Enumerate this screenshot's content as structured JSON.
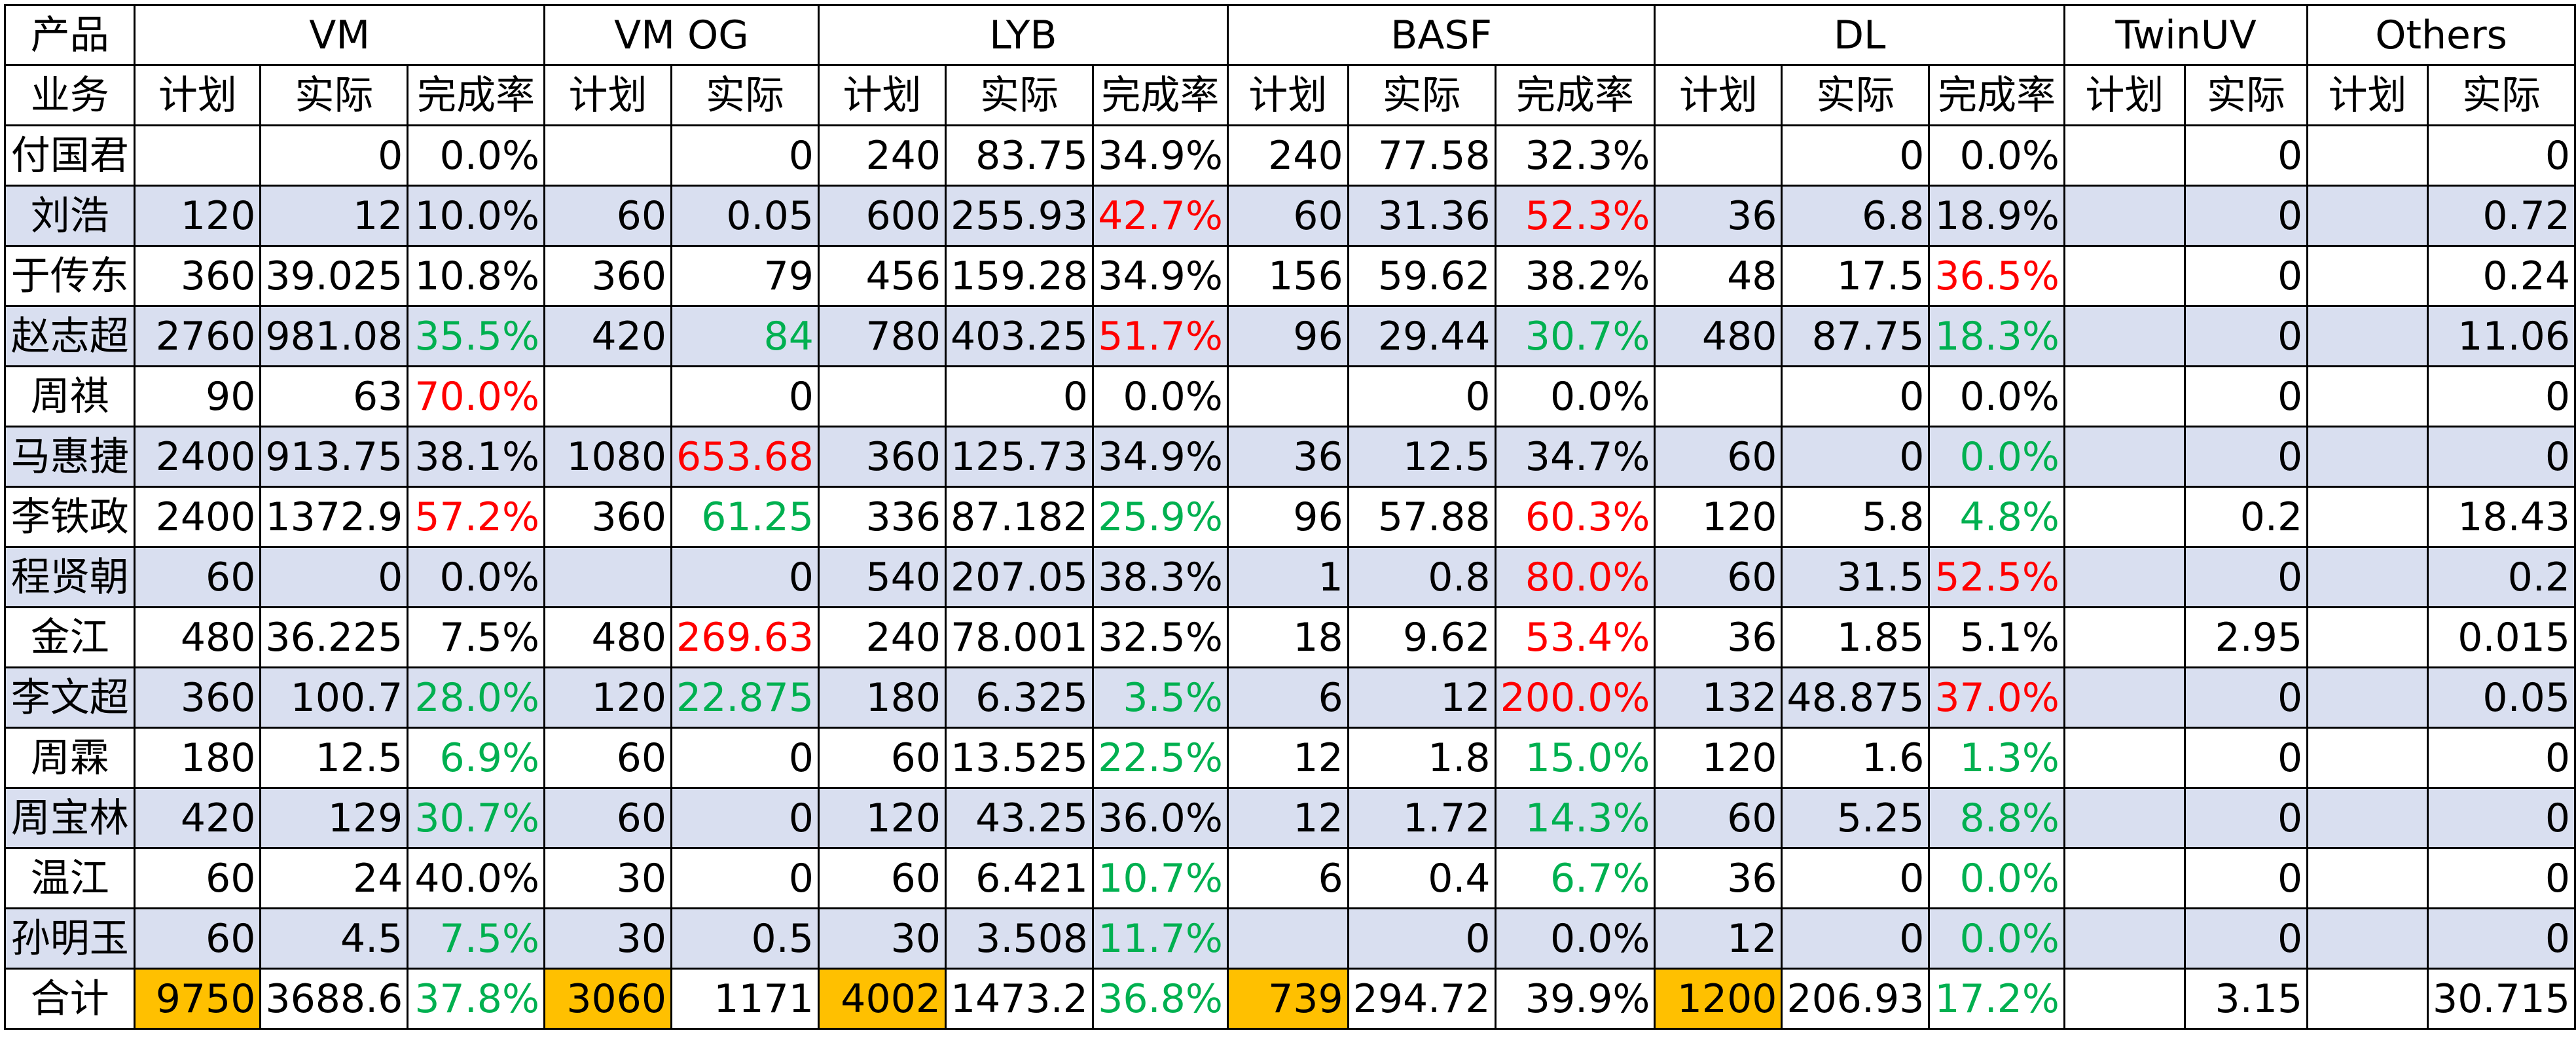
{
  "header": {
    "corner_top": "产品",
    "corner_bottom": "业务",
    "groups": [
      {
        "name": "VM",
        "span": 3
      },
      {
        "name": "VM OG",
        "span": 2
      },
      {
        "name": "LYB",
        "span": 3
      },
      {
        "name": "BASF",
        "span": 3
      },
      {
        "name": "DL",
        "span": 3
      },
      {
        "name": "TwinUV",
        "span": 2
      },
      {
        "name": "Others",
        "span": 2
      }
    ],
    "subheaders": [
      "计划",
      "实际",
      "完成率",
      "计划",
      "实际",
      "计划",
      "实际",
      "完成率",
      "计划",
      "实际",
      "完成率",
      "计划",
      "实际",
      "完成率",
      "计划",
      "实际",
      "计划",
      "实际"
    ]
  },
  "colors": {
    "red": "#ff0000",
    "green": "#00b050",
    "row_shade": "#d9dff0",
    "total_highlight": "#ffc000"
  },
  "rows": [
    {
      "name": "付国君",
      "shade": false,
      "cells": [
        {
          "v": ""
        },
        {
          "v": "0"
        },
        {
          "v": "0.0%"
        },
        {
          "v": ""
        },
        {
          "v": "0"
        },
        {
          "v": "240"
        },
        {
          "v": "83.75"
        },
        {
          "v": "34.9%"
        },
        {
          "v": "240"
        },
        {
          "v": "77.58"
        },
        {
          "v": "32.3%"
        },
        {
          "v": ""
        },
        {
          "v": "0"
        },
        {
          "v": "0.0%"
        },
        {
          "v": ""
        },
        {
          "v": "0"
        },
        {
          "v": ""
        },
        {
          "v": "0"
        }
      ]
    },
    {
      "name": "刘浩",
      "shade": true,
      "cells": [
        {
          "v": "120"
        },
        {
          "v": "12"
        },
        {
          "v": "10.0%"
        },
        {
          "v": "60"
        },
        {
          "v": "0.05"
        },
        {
          "v": "600"
        },
        {
          "v": "255.93"
        },
        {
          "v": "42.7%",
          "c": "red"
        },
        {
          "v": "60"
        },
        {
          "v": "31.36"
        },
        {
          "v": "52.3%",
          "c": "red"
        },
        {
          "v": "36"
        },
        {
          "v": "6.8"
        },
        {
          "v": "18.9%"
        },
        {
          "v": ""
        },
        {
          "v": "0"
        },
        {
          "v": ""
        },
        {
          "v": "0.72"
        }
      ]
    },
    {
      "name": "于传东",
      "shade": false,
      "cells": [
        {
          "v": "360"
        },
        {
          "v": "39.025"
        },
        {
          "v": "10.8%"
        },
        {
          "v": "360"
        },
        {
          "v": "79"
        },
        {
          "v": "456"
        },
        {
          "v": "159.28"
        },
        {
          "v": "34.9%"
        },
        {
          "v": "156"
        },
        {
          "v": "59.62"
        },
        {
          "v": "38.2%"
        },
        {
          "v": "48"
        },
        {
          "v": "17.5"
        },
        {
          "v": "36.5%",
          "c": "red"
        },
        {
          "v": ""
        },
        {
          "v": "0"
        },
        {
          "v": ""
        },
        {
          "v": "0.24"
        }
      ]
    },
    {
      "name": "赵志超",
      "shade": true,
      "cells": [
        {
          "v": "2760"
        },
        {
          "v": "981.08"
        },
        {
          "v": "35.5%",
          "c": "green"
        },
        {
          "v": "420"
        },
        {
          "v": "84",
          "c": "green"
        },
        {
          "v": "780"
        },
        {
          "v": "403.25"
        },
        {
          "v": "51.7%",
          "c": "red"
        },
        {
          "v": "96"
        },
        {
          "v": "29.44"
        },
        {
          "v": "30.7%",
          "c": "green"
        },
        {
          "v": "480"
        },
        {
          "v": "87.75"
        },
        {
          "v": "18.3%",
          "c": "green"
        },
        {
          "v": ""
        },
        {
          "v": "0"
        },
        {
          "v": ""
        },
        {
          "v": "11.06"
        }
      ]
    },
    {
      "name": "周祺",
      "shade": false,
      "cells": [
        {
          "v": "90"
        },
        {
          "v": "63"
        },
        {
          "v": "70.0%",
          "c": "red"
        },
        {
          "v": ""
        },
        {
          "v": "0"
        },
        {
          "v": ""
        },
        {
          "v": "0"
        },
        {
          "v": "0.0%"
        },
        {
          "v": ""
        },
        {
          "v": "0"
        },
        {
          "v": "0.0%"
        },
        {
          "v": ""
        },
        {
          "v": "0"
        },
        {
          "v": "0.0%"
        },
        {
          "v": ""
        },
        {
          "v": "0"
        },
        {
          "v": ""
        },
        {
          "v": "0"
        }
      ]
    },
    {
      "name": "马惠捷",
      "shade": true,
      "cells": [
        {
          "v": "2400"
        },
        {
          "v": "913.75"
        },
        {
          "v": "38.1%"
        },
        {
          "v": "1080"
        },
        {
          "v": "653.68",
          "c": "red"
        },
        {
          "v": "360"
        },
        {
          "v": "125.73"
        },
        {
          "v": "34.9%"
        },
        {
          "v": "36"
        },
        {
          "v": "12.5"
        },
        {
          "v": "34.7%"
        },
        {
          "v": "60"
        },
        {
          "v": "0"
        },
        {
          "v": "0.0%",
          "c": "green"
        },
        {
          "v": ""
        },
        {
          "v": "0"
        },
        {
          "v": ""
        },
        {
          "v": "0"
        }
      ]
    },
    {
      "name": "李铁政",
      "shade": false,
      "cells": [
        {
          "v": "2400"
        },
        {
          "v": "1372.9"
        },
        {
          "v": "57.2%",
          "c": "red"
        },
        {
          "v": "360"
        },
        {
          "v": "61.25",
          "c": "green"
        },
        {
          "v": "336"
        },
        {
          "v": "87.182"
        },
        {
          "v": "25.9%",
          "c": "green"
        },
        {
          "v": "96"
        },
        {
          "v": "57.88"
        },
        {
          "v": "60.3%",
          "c": "red"
        },
        {
          "v": "120"
        },
        {
          "v": "5.8"
        },
        {
          "v": "4.8%",
          "c": "green"
        },
        {
          "v": ""
        },
        {
          "v": "0.2"
        },
        {
          "v": ""
        },
        {
          "v": "18.43"
        }
      ]
    },
    {
      "name": "程贤朝",
      "shade": true,
      "cells": [
        {
          "v": "60"
        },
        {
          "v": "0"
        },
        {
          "v": "0.0%"
        },
        {
          "v": ""
        },
        {
          "v": "0"
        },
        {
          "v": "540"
        },
        {
          "v": "207.05"
        },
        {
          "v": "38.3%"
        },
        {
          "v": "1"
        },
        {
          "v": "0.8"
        },
        {
          "v": "80.0%",
          "c": "red"
        },
        {
          "v": "60"
        },
        {
          "v": "31.5"
        },
        {
          "v": "52.5%",
          "c": "red"
        },
        {
          "v": ""
        },
        {
          "v": "0"
        },
        {
          "v": ""
        },
        {
          "v": "0.2"
        }
      ]
    },
    {
      "name": "金江",
      "shade": false,
      "cells": [
        {
          "v": "480"
        },
        {
          "v": "36.225"
        },
        {
          "v": "7.5%"
        },
        {
          "v": "480"
        },
        {
          "v": "269.63",
          "c": "red"
        },
        {
          "v": "240"
        },
        {
          "v": "78.001"
        },
        {
          "v": "32.5%"
        },
        {
          "v": "18"
        },
        {
          "v": "9.62"
        },
        {
          "v": "53.4%",
          "c": "red"
        },
        {
          "v": "36"
        },
        {
          "v": "1.85"
        },
        {
          "v": "5.1%"
        },
        {
          "v": ""
        },
        {
          "v": "2.95"
        },
        {
          "v": ""
        },
        {
          "v": "0.015"
        }
      ]
    },
    {
      "name": "李文超",
      "shade": true,
      "cells": [
        {
          "v": "360"
        },
        {
          "v": "100.7"
        },
        {
          "v": "28.0%",
          "c": "green"
        },
        {
          "v": "120"
        },
        {
          "v": "22.875",
          "c": "green"
        },
        {
          "v": "180"
        },
        {
          "v": "6.325"
        },
        {
          "v": "3.5%",
          "c": "green"
        },
        {
          "v": "6"
        },
        {
          "v": "12"
        },
        {
          "v": "200.0%",
          "c": "red"
        },
        {
          "v": "132"
        },
        {
          "v": "48.875"
        },
        {
          "v": "37.0%",
          "c": "red"
        },
        {
          "v": ""
        },
        {
          "v": "0"
        },
        {
          "v": ""
        },
        {
          "v": "0.05"
        }
      ]
    },
    {
      "name": "周霖",
      "shade": false,
      "cells": [
        {
          "v": "180"
        },
        {
          "v": "12.5"
        },
        {
          "v": "6.9%",
          "c": "green"
        },
        {
          "v": "60"
        },
        {
          "v": "0"
        },
        {
          "v": "60"
        },
        {
          "v": "13.525"
        },
        {
          "v": "22.5%",
          "c": "green"
        },
        {
          "v": "12"
        },
        {
          "v": "1.8"
        },
        {
          "v": "15.0%",
          "c": "green"
        },
        {
          "v": "120"
        },
        {
          "v": "1.6"
        },
        {
          "v": "1.3%",
          "c": "green"
        },
        {
          "v": ""
        },
        {
          "v": "0"
        },
        {
          "v": ""
        },
        {
          "v": "0"
        }
      ]
    },
    {
      "name": "周宝林",
      "shade": true,
      "cells": [
        {
          "v": "420"
        },
        {
          "v": "129"
        },
        {
          "v": "30.7%",
          "c": "green"
        },
        {
          "v": "60"
        },
        {
          "v": "0"
        },
        {
          "v": "120"
        },
        {
          "v": "43.25"
        },
        {
          "v": "36.0%"
        },
        {
          "v": "12"
        },
        {
          "v": "1.72"
        },
        {
          "v": "14.3%",
          "c": "green"
        },
        {
          "v": "60"
        },
        {
          "v": "5.25"
        },
        {
          "v": "8.8%",
          "c": "green"
        },
        {
          "v": ""
        },
        {
          "v": "0"
        },
        {
          "v": ""
        },
        {
          "v": "0"
        }
      ]
    },
    {
      "name": "温江",
      "shade": false,
      "cells": [
        {
          "v": "60"
        },
        {
          "v": "24"
        },
        {
          "v": "40.0%"
        },
        {
          "v": "30"
        },
        {
          "v": "0"
        },
        {
          "v": "60"
        },
        {
          "v": "6.421"
        },
        {
          "v": "10.7%",
          "c": "green"
        },
        {
          "v": "6"
        },
        {
          "v": "0.4"
        },
        {
          "v": "6.7%",
          "c": "green"
        },
        {
          "v": "36"
        },
        {
          "v": "0"
        },
        {
          "v": "0.0%",
          "c": "green"
        },
        {
          "v": ""
        },
        {
          "v": "0"
        },
        {
          "v": ""
        },
        {
          "v": "0"
        }
      ]
    },
    {
      "name": "孙明玉",
      "shade": true,
      "cells": [
        {
          "v": "60"
        },
        {
          "v": "4.5"
        },
        {
          "v": "7.5%",
          "c": "green"
        },
        {
          "v": "30"
        },
        {
          "v": "0.5"
        },
        {
          "v": "30"
        },
        {
          "v": "3.508"
        },
        {
          "v": "11.7%",
          "c": "green"
        },
        {
          "v": ""
        },
        {
          "v": "0"
        },
        {
          "v": "0.0%"
        },
        {
          "v": "12"
        },
        {
          "v": "0"
        },
        {
          "v": "0.0%",
          "c": "green"
        },
        {
          "v": ""
        },
        {
          "v": "0"
        },
        {
          "v": ""
        },
        {
          "v": "0"
        }
      ]
    },
    {
      "name": "合计",
      "shade": false,
      "cells": [
        {
          "v": "9750",
          "hl": true
        },
        {
          "v": "3688.6"
        },
        {
          "v": "37.8%",
          "c": "green"
        },
        {
          "v": "3060",
          "hl": true
        },
        {
          "v": "1171"
        },
        {
          "v": "4002",
          "hl": true
        },
        {
          "v": "1473.2"
        },
        {
          "v": "36.8%",
          "c": "green"
        },
        {
          "v": "739",
          "hl": true
        },
        {
          "v": "294.72"
        },
        {
          "v": "39.9%"
        },
        {
          "v": "1200",
          "hl": true
        },
        {
          "v": "206.93"
        },
        {
          "v": "17.2%",
          "c": "green"
        },
        {
          "v": ""
        },
        {
          "v": "3.15"
        },
        {
          "v": ""
        },
        {
          "v": "30.715"
        }
      ]
    }
  ]
}
